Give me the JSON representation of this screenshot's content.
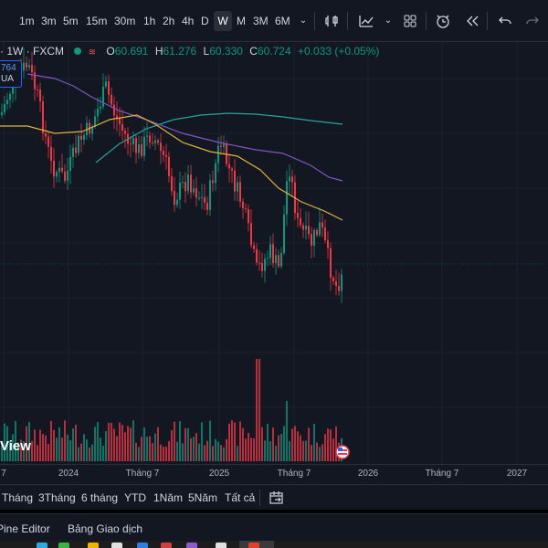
{
  "toolbar": {
    "timeframes": [
      "1m",
      "3m",
      "5m",
      "15m",
      "30m",
      "1h",
      "2h",
      "4h",
      "D",
      "W",
      "M",
      "3M",
      "6M"
    ],
    "active_timeframe": "W",
    "icons": [
      "chevron-down-icon",
      "bar-style-icon",
      "indicators-icon",
      "chevron-down-icon",
      "layout-grid-icon",
      "alert-clock-icon",
      "replay-icon",
      "undo-icon",
      "redo-icon"
    ]
  },
  "legend": {
    "symbol": "· 1W · FXCM",
    "open_label": "O",
    "open": "60.691",
    "high_label": "H",
    "high": "61.276",
    "low_label": "L",
    "low": "60.330",
    "close_label": "C",
    "close": "60.724",
    "change": "+0.033 (+0.05%)"
  },
  "price_badge": {
    "line1": "764",
    "line2": "UA"
  },
  "watermark": "View",
  "chart_data": {
    "type": "candlestick",
    "interval": "1W",
    "x_ticks": [
      "7",
      "2024",
      "Tháng 7",
      "2025",
      "Tháng 7",
      "2026",
      "Tháng 7",
      "2027"
    ],
    "last_close": 60.724,
    "colors": {
      "up": "#089981",
      "down": "#f23645",
      "ma_fast": "#e0b43b",
      "ma_mid": "#7e57c2",
      "ma_slow": "#26a69a"
    }
  },
  "x_axis": {
    "ticks": [
      "7",
      "2024",
      "Tháng 7",
      "2025",
      "Tháng 7",
      "2026",
      "Tháng 7",
      "2027"
    ]
  },
  "range_bar": {
    "items": [
      "Tháng",
      "3Tháng",
      "6 tháng",
      "YTD",
      "1Năm",
      "5Năm",
      "Tất cả"
    ]
  },
  "bottom_bar": {
    "pine_editor": "Pine Editor",
    "trading_panel": "Bảng Giao dịch"
  }
}
